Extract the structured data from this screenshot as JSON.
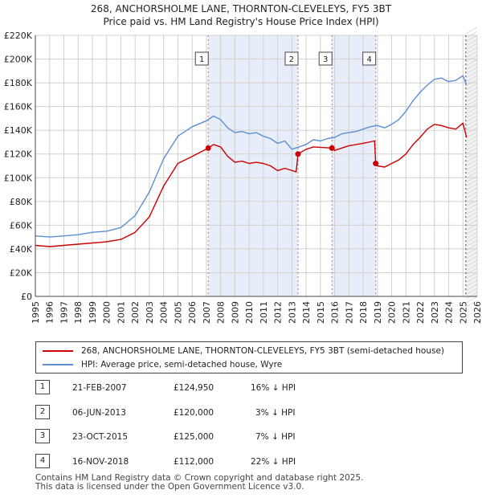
{
  "title": "268, ANCHORSHOLME LANE, THORNTON-CLEVELEYS, FY5 3BT",
  "subtitle": "Price paid vs. HM Land Registry's House Price Index (HPI)",
  "colors": {
    "price": "#cc0000",
    "hpi": "#5b8fd4",
    "shade": "#e8eef9",
    "grid": "#d0d0d0"
  },
  "legend": {
    "price_label": "268, ANCHORSHOLME LANE, THORNTON-CLEVELEYS, FY5 3BT (semi-detached house)",
    "hpi_label": "HPI: Average price, semi-detached house, Wyre"
  },
  "sales": [
    {
      "num": "1",
      "date": "21-FEB-2007",
      "price": "£124,950",
      "hpi": "16% ↓ HPI"
    },
    {
      "num": "2",
      "date": "06-JUN-2013",
      "price": "£120,000",
      "hpi": "3% ↓ HPI"
    },
    {
      "num": "3",
      "date": "23-OCT-2015",
      "price": "£125,000",
      "hpi": "7% ↓ HPI"
    },
    {
      "num": "4",
      "date": "16-NOV-2018",
      "price": "£112,000",
      "hpi": "22% ↓ HPI"
    }
  ],
  "footer": {
    "line1": "Contains HM Land Registry data © Crown copyright and database right 2025.",
    "line2": "This data is licensed under the Open Government Licence v3.0."
  },
  "chart_data": {
    "type": "line",
    "xlim": [
      1995,
      2026
    ],
    "ylim": [
      0,
      220000
    ],
    "x_ticks": [
      "1995",
      "1996",
      "1997",
      "1998",
      "1999",
      "2000",
      "2001",
      "2002",
      "2003",
      "2004",
      "2005",
      "2006",
      "2007",
      "2008",
      "2009",
      "2010",
      "2011",
      "2012",
      "2013",
      "2014",
      "2015",
      "2016",
      "2017",
      "2018",
      "2019",
      "2020",
      "2021",
      "2022",
      "2023",
      "2024",
      "2025",
      "2026"
    ],
    "y_ticks": [
      {
        "value": 0,
        "label": "£0"
      },
      {
        "value": 20000,
        "label": "£20K"
      },
      {
        "value": 40000,
        "label": "£40K"
      },
      {
        "value": 60000,
        "label": "£60K"
      },
      {
        "value": 80000,
        "label": "£80K"
      },
      {
        "value": 100000,
        "label": "£100K"
      },
      {
        "value": 120000,
        "label": "£120K"
      },
      {
        "value": 140000,
        "label": "£140K"
      },
      {
        "value": 160000,
        "label": "£160K"
      },
      {
        "value": 180000,
        "label": "£180K"
      },
      {
        "value": 200000,
        "label": "£200K"
      },
      {
        "value": 220000,
        "label": "£220K"
      }
    ],
    "shaded_ranges": [
      [
        2007.13,
        2013.43
      ],
      [
        2015.81,
        2018.88
      ]
    ],
    "future_shade_from": 2025.2,
    "markers": [
      {
        "label": "1",
        "x": 2007.13,
        "y": 124950
      },
      {
        "label": "2",
        "x": 2013.43,
        "y": 120000
      },
      {
        "label": "3",
        "x": 2015.81,
        "y": 125000
      },
      {
        "label": "4",
        "x": 2018.88,
        "y": 112000
      }
    ],
    "series": [
      {
        "name": "HPI: Average price, semi-detached house, Wyre",
        "points": [
          [
            1995,
            51000
          ],
          [
            1996,
            50000
          ],
          [
            1997,
            51000
          ],
          [
            1998,
            52000
          ],
          [
            1999,
            54000
          ],
          [
            2000,
            55000
          ],
          [
            2001,
            58000
          ],
          [
            2002,
            68000
          ],
          [
            2003,
            88000
          ],
          [
            2004,
            116000
          ],
          [
            2005,
            135000
          ],
          [
            2006,
            143000
          ],
          [
            2007,
            148000
          ],
          [
            2007.5,
            152000
          ],
          [
            2008,
            149000
          ],
          [
            2008.5,
            142000
          ],
          [
            2009,
            138000
          ],
          [
            2009.5,
            139000
          ],
          [
            2010,
            137000
          ],
          [
            2010.5,
            138000
          ],
          [
            2011,
            135000
          ],
          [
            2011.5,
            133000
          ],
          [
            2012,
            129000
          ],
          [
            2012.5,
            131000
          ],
          [
            2013,
            124000
          ],
          [
            2013.5,
            126000
          ],
          [
            2014,
            128000
          ],
          [
            2014.5,
            132000
          ],
          [
            2015,
            131000
          ],
          [
            2015.5,
            133000
          ],
          [
            2016,
            134000
          ],
          [
            2016.5,
            137000
          ],
          [
            2017,
            138000
          ],
          [
            2017.5,
            139000
          ],
          [
            2018,
            141000
          ],
          [
            2018.5,
            143000
          ],
          [
            2019,
            144000
          ],
          [
            2019.5,
            142000
          ],
          [
            2020,
            145000
          ],
          [
            2020.5,
            149000
          ],
          [
            2021,
            156000
          ],
          [
            2021.5,
            165000
          ],
          [
            2022,
            172000
          ],
          [
            2022.5,
            178000
          ],
          [
            2023,
            183000
          ],
          [
            2023.5,
            184000
          ],
          [
            2024,
            181000
          ],
          [
            2024.5,
            182000
          ],
          [
            2025,
            186000
          ],
          [
            2025.25,
            178000
          ]
        ]
      },
      {
        "name": "268, ANCHORSHOLME LANE, THORNTON-CLEVELEYS, FY5 3BT (semi-detached house)",
        "points": [
          [
            1995,
            43000
          ],
          [
            1996,
            42000
          ],
          [
            1997,
            43000
          ],
          [
            1998,
            44000
          ],
          [
            1999,
            45000
          ],
          [
            2000,
            46000
          ],
          [
            2001,
            48000
          ],
          [
            2002,
            54000
          ],
          [
            2003,
            67000
          ],
          [
            2004,
            93000
          ],
          [
            2005,
            112000
          ],
          [
            2006,
            118000
          ],
          [
            2007.13,
            124950
          ],
          [
            2007.5,
            128000
          ],
          [
            2008,
            126000
          ],
          [
            2008.5,
            118000
          ],
          [
            2009,
            113000
          ],
          [
            2009.5,
            114000
          ],
          [
            2010,
            112000
          ],
          [
            2010.5,
            113000
          ],
          [
            2011,
            112000
          ],
          [
            2011.5,
            110000
          ],
          [
            2012,
            106000
          ],
          [
            2012.5,
            108000
          ],
          [
            2013.3,
            105000
          ],
          [
            2013.43,
            120000
          ],
          [
            2014,
            124000
          ],
          [
            2014.5,
            126000
          ],
          [
            2015.81,
            125000
          ],
          [
            2016,
            123000
          ],
          [
            2016.5,
            125000
          ],
          [
            2017,
            127000
          ],
          [
            2017.5,
            128000
          ],
          [
            2018,
            129000
          ],
          [
            2018.8,
            131000
          ],
          [
            2018.88,
            112000
          ],
          [
            2019,
            110000
          ],
          [
            2019.5,
            109000
          ],
          [
            2020,
            112000
          ],
          [
            2020.5,
            115000
          ],
          [
            2021,
            120000
          ],
          [
            2021.5,
            128000
          ],
          [
            2022,
            134000
          ],
          [
            2022.5,
            141000
          ],
          [
            2023,
            145000
          ],
          [
            2023.5,
            144000
          ],
          [
            2024,
            142000
          ],
          [
            2024.5,
            141000
          ],
          [
            2025,
            146000
          ],
          [
            2025.25,
            134000
          ]
        ]
      }
    ]
  }
}
